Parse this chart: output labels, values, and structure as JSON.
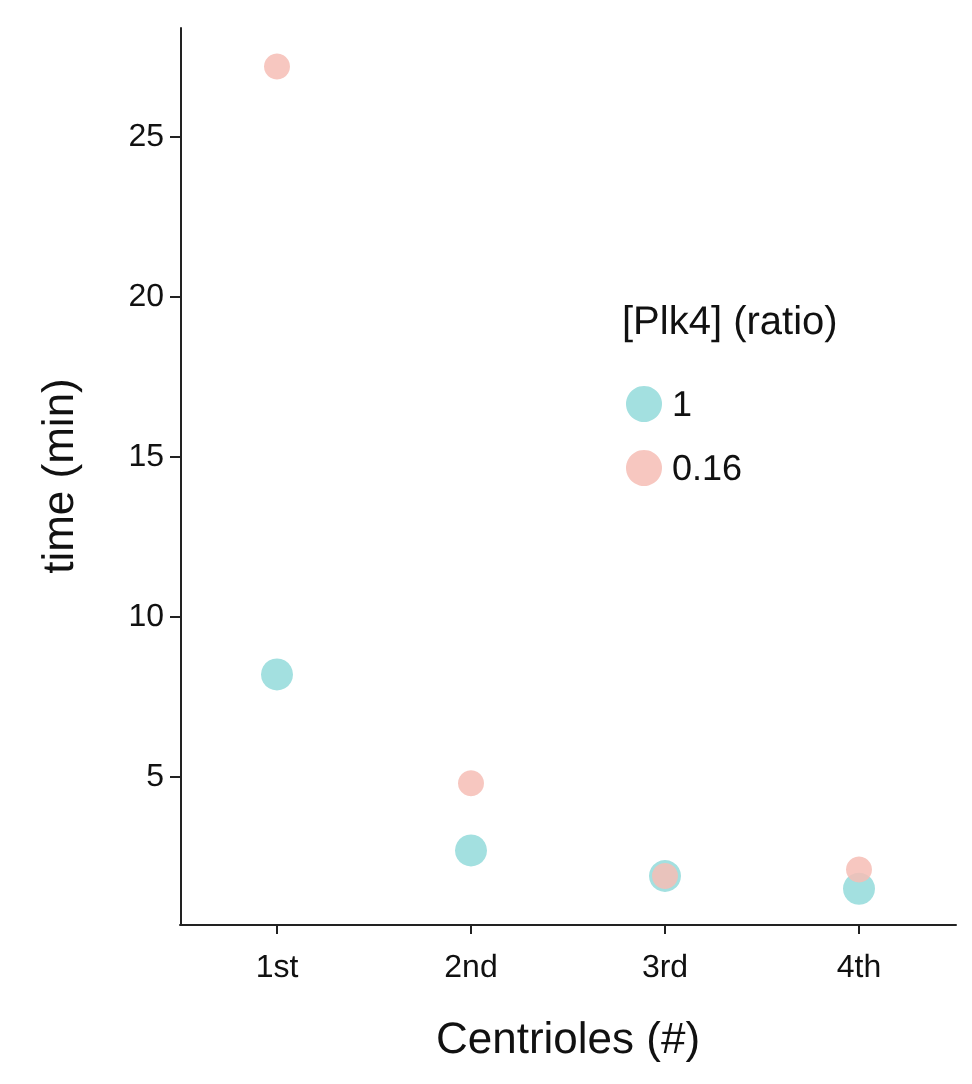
{
  "chart_data": {
    "type": "scatter",
    "xlabel": "Centrioles (#)",
    "ylabel": "time (min)",
    "legend_title": "[Plk4] (ratio)",
    "categories": [
      "1st",
      "2nd",
      "3rd",
      "4th"
    ],
    "series": [
      {
        "name": "1",
        "color": "#a3e0e0",
        "values": [
          8.2,
          2.7,
          1.9,
          1.5
        ]
      },
      {
        "name": "0.16",
        "color": "#f6bdb5",
        "values": [
          27.2,
          4.8,
          1.9,
          2.1
        ]
      }
    ],
    "ylim": [
      0.4,
      28.4
    ],
    "yticks": [
      5,
      10,
      15,
      20,
      25
    ],
    "grid": false,
    "legend": "right",
    "marker": "circle"
  }
}
